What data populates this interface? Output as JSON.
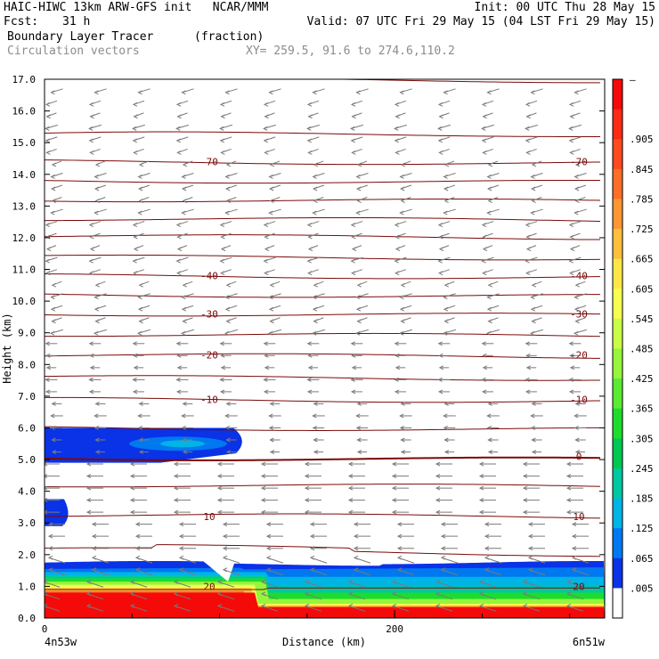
{
  "header": {
    "line1_left": "HAIC-HIWC 13km ARW-GFS init   NCAR/MMM",
    "line1_right": "Init: 00 UTC Thu 28 May 15",
    "fcst_label": "Fcst:",
    "fcst_value": "31 h",
    "valid": "Valid: 07 UTC Fri 29 May 15 (04 LST Fri 29 May 15)",
    "field_name": "Boundary Layer Tracer",
    "field_unit": "(fraction)",
    "overlay_name": "Circulation vectors",
    "xy_text": "XY= 259.5, 91.6 to 274.6,110.2"
  },
  "chart_data": {
    "type": "heatmap",
    "ylabel": "Height (km)",
    "xlabel": "Distance (km)",
    "yticks": [
      "0.0",
      "1.0",
      "2.0",
      "3.0",
      "4.0",
      "5.0",
      "6.0",
      "7.0",
      "8.0",
      "9.0",
      "10.0",
      "11.0",
      "12.0",
      "13.0",
      "14.0",
      "15.0",
      "16.0",
      "17.0"
    ],
    "ylim": [
      0,
      17
    ],
    "xticks": [
      {
        "value": 0,
        "label": "0"
      },
      {
        "value": 200,
        "label": "200"
      }
    ],
    "xlim": [
      0,
      320
    ],
    "x_endpoint_labels": [
      "4n53w",
      "6n51w"
    ],
    "colorbar": {
      "labels": [
        "–",
        ".905",
        ".845",
        ".785",
        ".725",
        ".665",
        ".605",
        ".545",
        ".485",
        ".425",
        ".365",
        ".305",
        ".245",
        ".185",
        ".125",
        ".065",
        ".005"
      ],
      "colors": [
        "#f50a0a",
        "#fa2a14",
        "#ff4a1e",
        "#ff6e28",
        "#ff9632",
        "#ffbe3c",
        "#ffe646",
        "#f5ff50",
        "#c8ff46",
        "#96f53c",
        "#5aeb32",
        "#1edc2d",
        "#00c850",
        "#00c8a0",
        "#00b4e6",
        "#0078f0",
        "#0a32e6",
        "#ffffff"
      ]
    },
    "contour_labels": [
      {
        "label": "-70",
        "height_km": 14.4
      },
      {
        "label": "-40",
        "height_km": 10.8
      },
      {
        "label": "-30",
        "height_km": 9.6
      },
      {
        "label": "-20",
        "height_km": 8.3
      },
      {
        "label": "-10",
        "height_km": 6.9
      },
      {
        "label": "0",
        "height_km": 5.1
      },
      {
        "label": "10",
        "height_km": 3.2
      },
      {
        "label": "20",
        "height_km": 1.0
      }
    ]
  }
}
